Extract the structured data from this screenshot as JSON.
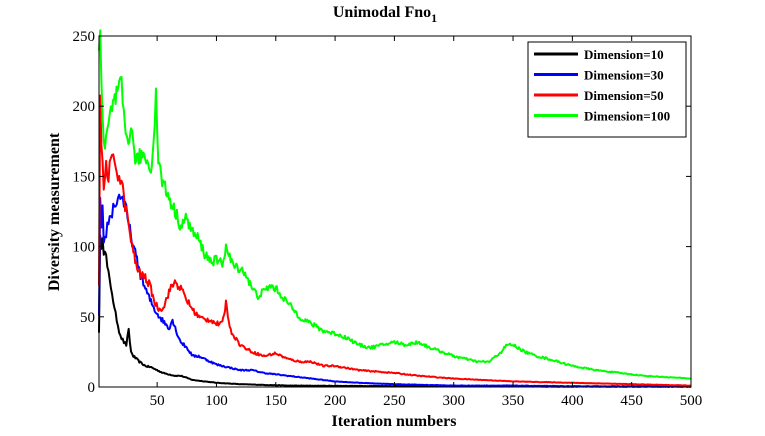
{
  "chart_data": {
    "type": "line",
    "title_main": "Unimodal Fno",
    "title_sub": "1",
    "xlabel": "Iteration numbers",
    "ylabel": "Diversity measurement",
    "xlim": [
      1,
      500
    ],
    "ylim": [
      0,
      250
    ],
    "xticks": [
      50,
      100,
      150,
      200,
      250,
      300,
      350,
      400,
      450,
      500
    ],
    "yticks": [
      0,
      50,
      100,
      150,
      200,
      250
    ],
    "grid": false,
    "legend_position": "top-right",
    "series": [
      {
        "name": "Dimension=10",
        "color": "#000000",
        "x": [
          1,
          2,
          3,
          4,
          5,
          6,
          8,
          10,
          12,
          14,
          16,
          18,
          20,
          22,
          24,
          26,
          28,
          30,
          35,
          40,
          45,
          50,
          55,
          60,
          65,
          70,
          80,
          90,
          100,
          120,
          140,
          160,
          200,
          300,
          400,
          500
        ],
        "y": [
          40,
          105,
          95,
          110,
          98,
          100,
          85,
          75,
          68,
          55,
          48,
          40,
          35,
          32,
          30,
          40,
          25,
          22,
          18,
          15,
          14,
          12,
          10,
          9,
          8,
          8,
          5,
          4,
          3,
          2,
          1.5,
          1,
          0.8,
          0.5,
          0.3,
          0.2
        ]
      },
      {
        "name": "Dimension=30",
        "color": "#0000ff",
        "x": [
          1,
          2,
          3,
          4,
          5,
          6,
          8,
          10,
          12,
          14,
          16,
          18,
          20,
          22,
          24,
          26,
          28,
          30,
          33,
          36,
          40,
          44,
          48,
          52,
          56,
          60,
          63,
          66,
          70,
          75,
          80,
          85,
          90,
          95,
          100,
          105,
          110,
          120,
          130,
          140,
          150,
          160,
          170,
          180,
          200,
          220,
          250,
          300,
          350,
          400,
          450,
          500
        ],
        "y": [
          50,
          130,
          110,
          125,
          100,
          105,
          115,
          120,
          125,
          130,
          132,
          135,
          138,
          130,
          125,
          115,
          108,
          100,
          90,
          80,
          70,
          62,
          55,
          50,
          46,
          42,
          48,
          40,
          32,
          28,
          22,
          22,
          20,
          18,
          16,
          15,
          14,
          12,
          12,
          10,
          9,
          8,
          7,
          6,
          4,
          3,
          2,
          1,
          1,
          0.5,
          0.5,
          0.3
        ]
      },
      {
        "name": "Dimension=50",
        "color": "#ff0000",
        "x": [
          1,
          2,
          3,
          4,
          5,
          6,
          7,
          8,
          10,
          12,
          14,
          16,
          18,
          20,
          22,
          24,
          26,
          28,
          30,
          33,
          36,
          40,
          44,
          48,
          52,
          56,
          60,
          65,
          70,
          75,
          80,
          85,
          90,
          95,
          100,
          105,
          108,
          112,
          116,
          120,
          130,
          140,
          150,
          160,
          170,
          180,
          190,
          200,
          220,
          250,
          270,
          300,
          350,
          400,
          450,
          500
        ],
        "y": [
          75,
          210,
          175,
          155,
          140,
          150,
          160,
          148,
          155,
          160,
          162,
          155,
          150,
          145,
          135,
          125,
          115,
          105,
          95,
          85,
          80,
          78,
          72,
          60,
          55,
          58,
          68,
          75,
          70,
          62,
          55,
          50,
          48,
          48,
          45,
          45,
          60,
          40,
          35,
          30,
          25,
          22,
          24,
          20,
          18,
          18,
          15,
          15,
          12,
          10,
          8,
          6,
          4,
          3,
          2,
          1
        ]
      },
      {
        "name": "Dimension=100",
        "color": "#00ff00",
        "x": [
          1,
          2,
          3,
          4,
          5,
          6,
          8,
          10,
          12,
          15,
          18,
          20,
          22,
          25,
          28,
          30,
          33,
          36,
          40,
          44,
          47,
          49,
          51,
          55,
          60,
          65,
          70,
          75,
          80,
          85,
          90,
          95,
          100,
          105,
          108,
          112,
          116,
          120,
          125,
          130,
          135,
          140,
          145,
          150,
          160,
          170,
          180,
          190,
          200,
          210,
          220,
          230,
          240,
          250,
          260,
          270,
          280,
          290,
          300,
          310,
          320,
          330,
          340,
          345,
          350,
          360,
          370,
          380,
          400,
          420,
          440,
          460,
          480,
          500
        ],
        "y": [
          240,
          250,
          210,
          190,
          175,
          170,
          180,
          190,
          200,
          205,
          210,
          215,
          190,
          175,
          185,
          170,
          160,
          165,
          165,
          155,
          170,
          215,
          160,
          145,
          135,
          125,
          115,
          120,
          110,
          105,
          95,
          90,
          90,
          88,
          100,
          90,
          85,
          85,
          80,
          70,
          65,
          68,
          72,
          70,
          60,
          50,
          45,
          40,
          38,
          35,
          30,
          28,
          30,
          32,
          30,
          32,
          28,
          25,
          22,
          20,
          18,
          18,
          25,
          30,
          30,
          25,
          22,
          20,
          15,
          12,
          10,
          8,
          7,
          6
        ]
      }
    ]
  }
}
